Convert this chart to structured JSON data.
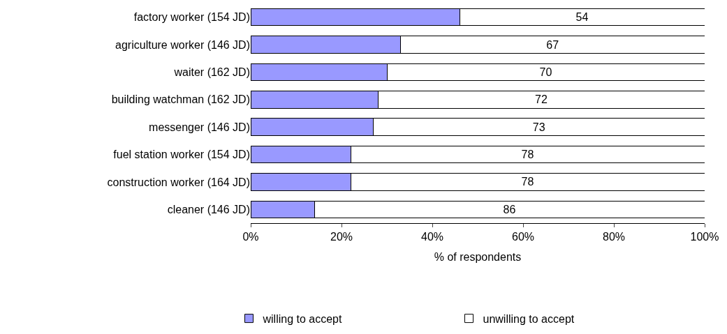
{
  "chart_data": {
    "type": "bar",
    "orientation": "horizontal",
    "stacked": true,
    "xlabel": "% of respondents",
    "categories": [
      "factory worker (154 JD)",
      "agriculture worker (146 JD)",
      "waiter (162 JD)",
      "building watchman (162 JD)",
      "messenger (146 JD)",
      "fuel station worker (154 JD)",
      "construction worker (164 JD)",
      "cleaner (146 JD)"
    ],
    "series": [
      {
        "name": "willing to accept",
        "color": "#9999ff",
        "values": [
          46,
          33,
          30,
          28,
          27,
          22,
          22,
          14
        ]
      },
      {
        "name": "unwilling to accept",
        "color": "#ffffff",
        "values": [
          54,
          67,
          70,
          72,
          73,
          78,
          78,
          86
        ],
        "value_labels": [
          "54",
          "67",
          "70",
          "72",
          "73",
          "78",
          "78",
          "86"
        ]
      }
    ],
    "xlim": [
      0,
      100
    ],
    "xticks": [
      {
        "value": 0,
        "label": "0%"
      },
      {
        "value": 20,
        "label": "20%"
      },
      {
        "value": 40,
        "label": "40%"
      },
      {
        "value": 60,
        "label": "60%"
      },
      {
        "value": 80,
        "label": "80%"
      },
      {
        "value": 100,
        "label": "100%"
      }
    ],
    "legend": "bottom"
  }
}
